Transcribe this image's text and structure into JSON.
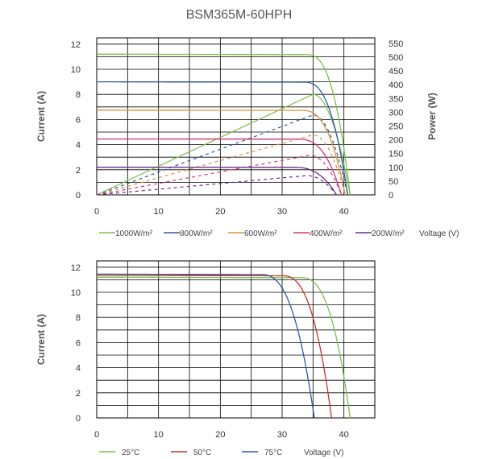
{
  "title": "BSM365M-60HPH",
  "chart_data": [
    {
      "type": "line",
      "title": "BSM365M-60HPH",
      "xlabel": "Voltage (V)",
      "ylabel": "Current (A)",
      "y2label": "Power (W)",
      "xlim": [
        0,
        45
      ],
      "ylim": [
        0,
        12.5
      ],
      "y2lim": [
        0,
        570
      ],
      "xticks": [
        "0",
        "10",
        "20",
        "30",
        "40"
      ],
      "yticks": [
        "0",
        "2",
        "4",
        "6",
        "8",
        "10",
        "12"
      ],
      "y2ticks": [
        "0",
        "50",
        "100",
        "150",
        "200",
        "250",
        "300",
        "350",
        "400",
        "450",
        "500",
        "550"
      ],
      "grid": true,
      "legend_position": "bottom",
      "series": [
        {
          "name": "1000W/m²",
          "color": "#7dc04a",
          "isc": 11.2,
          "voc": 41.0,
          "vk": 34.0,
          "pmax": 365,
          "vmp": 35.0
        },
        {
          "name": "800W/m²",
          "color": "#2e5aa8",
          "isc": 9.0,
          "voc": 40.6,
          "vk": 33.6,
          "pmax": 290,
          "vmp": 35.0
        },
        {
          "name": "600W/m²",
          "color": "#e0913a",
          "isc": 6.75,
          "voc": 40.2,
          "vk": 33.2,
          "pmax": 218,
          "vmp": 35.0
        },
        {
          "name": "400W/m²",
          "color": "#d9357a",
          "isc": 4.45,
          "voc": 39.6,
          "vk": 32.6,
          "pmax": 144,
          "vmp": 34.5
        },
        {
          "name": "200W/m²",
          "color": "#6c2d8a",
          "isc": 2.2,
          "voc": 38.8,
          "vk": 31.8,
          "pmax": 70,
          "vmp": 34.0
        }
      ]
    },
    {
      "type": "line",
      "xlabel": "Voltage (V)",
      "ylabel": "Current (A)",
      "xlim": [
        0,
        45
      ],
      "ylim": [
        0,
        12.5
      ],
      "xticks": [
        "0",
        "10",
        "20",
        "30",
        "40"
      ],
      "yticks": [
        "0",
        "2",
        "4",
        "6",
        "8",
        "10",
        "12"
      ],
      "grid": true,
      "legend_position": "bottom",
      "series": [
        {
          "name": "25°C",
          "color": "#7dc04a",
          "isc": 11.2,
          "voc": 41.0,
          "vk": 33.0
        },
        {
          "name": "50°C",
          "color": "#c8322e",
          "isc": 11.35,
          "voc": 38.0,
          "vk": 30.0
        },
        {
          "name": "75°C",
          "color": "#2e5aa8",
          "isc": 11.45,
          "voc": 35.2,
          "vk": 26.5
        }
      ]
    }
  ]
}
